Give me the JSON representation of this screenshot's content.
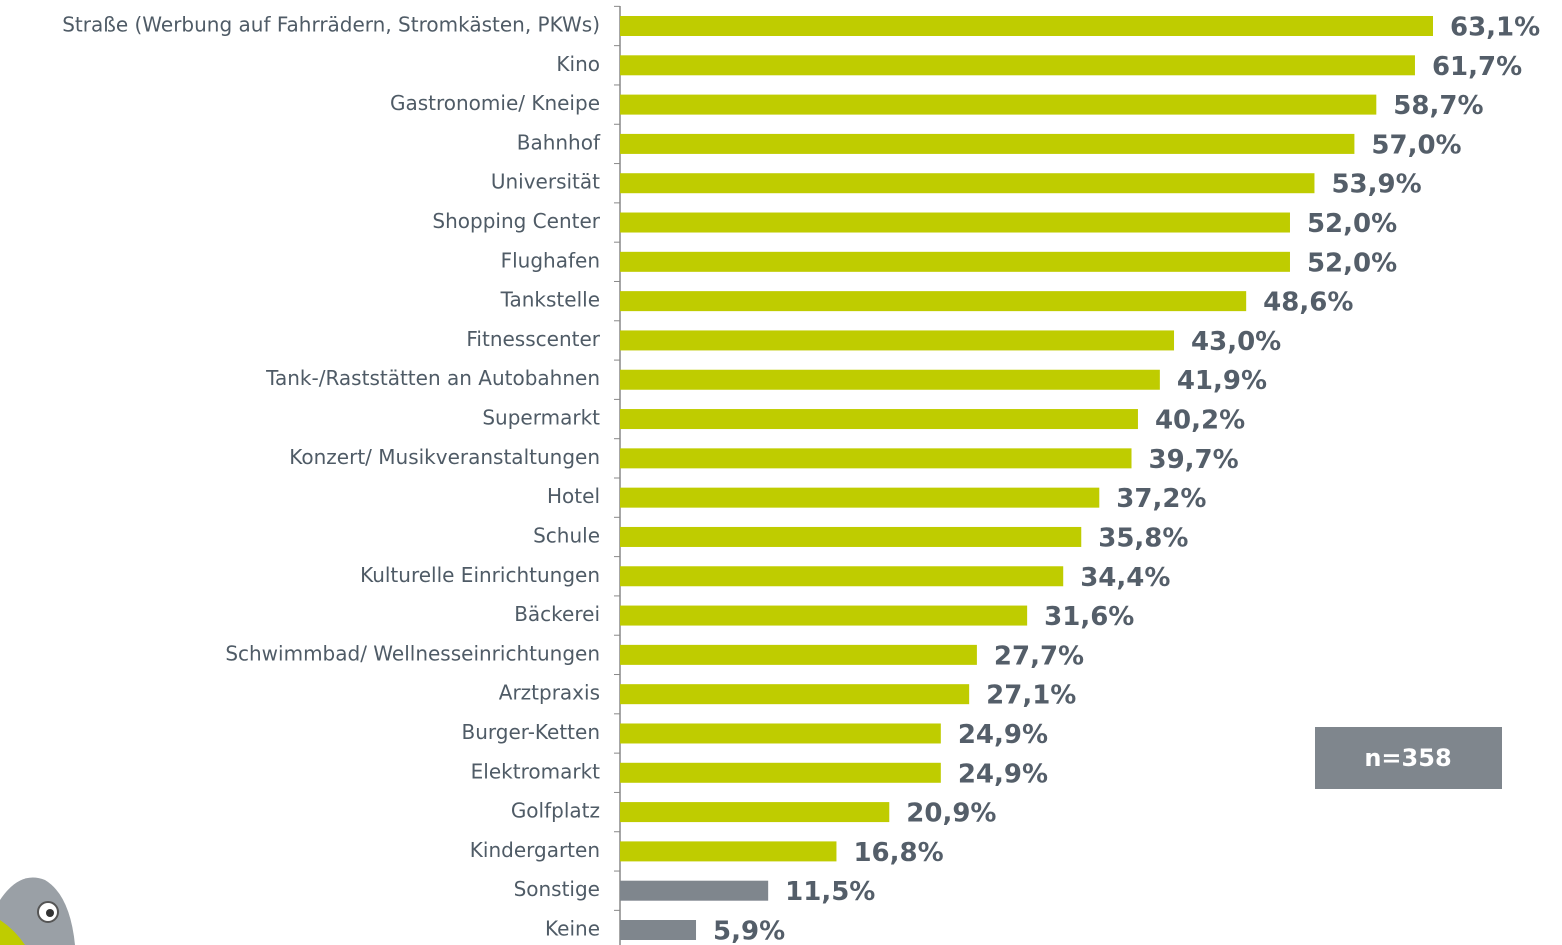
{
  "chart_data": {
    "type": "hbar",
    "categories": [
      "Straße (Werbung auf Fahrrädern, Stromkästen, PKWs)",
      "Kino",
      "Gastronomie/ Kneipe",
      "Bahnhof",
      "Universität",
      "Shopping Center",
      "Flughafen",
      "Tankstelle",
      "Fitnesscenter",
      "Tank-/Raststätten an Autobahnen",
      "Supermarkt",
      "Konzert/ Musikveranstaltungen",
      "Hotel",
      "Schule",
      "Kulturelle Einrichtungen",
      "Bäckerei",
      "Schwimmbad/ Wellnesseinrichtungen",
      "Arztpraxis",
      "Burger-Ketten",
      "Elektromarkt",
      "Golfplatz",
      "Kindergarten",
      "Sonstige",
      "Keine"
    ],
    "values": [
      63.1,
      61.7,
      58.7,
      57.0,
      53.9,
      52.0,
      52.0,
      48.6,
      43.0,
      41.9,
      40.2,
      39.7,
      37.2,
      35.8,
      34.4,
      31.6,
      27.7,
      27.1,
      24.9,
      24.9,
      20.9,
      16.8,
      11.5,
      5.9
    ],
    "value_labels": [
      "63,1%",
      "61,7%",
      "58,7%",
      "57,0%",
      "53,9%",
      "52,0%",
      "52,0%",
      "48,6%",
      "43,0%",
      "41,9%",
      "40,2%",
      "39,7%",
      "37,2%",
      "35,8%",
      "34,4%",
      "31,6%",
      "27,7%",
      "27,1%",
      "24,9%",
      "24,9%",
      "20,9%",
      "16,8%",
      "11,5%",
      "5,9%"
    ],
    "colors": [
      "#bfcc00",
      "#bfcc00",
      "#bfcc00",
      "#bfcc00",
      "#bfcc00",
      "#bfcc00",
      "#bfcc00",
      "#bfcc00",
      "#bfcc00",
      "#bfcc00",
      "#bfcc00",
      "#bfcc00",
      "#bfcc00",
      "#bfcc00",
      "#bfcc00",
      "#bfcc00",
      "#bfcc00",
      "#bfcc00",
      "#bfcc00",
      "#bfcc00",
      "#bfcc00",
      "#bfcc00",
      "#7f868d",
      "#7f868d"
    ],
    "annotation": "n=358"
  }
}
